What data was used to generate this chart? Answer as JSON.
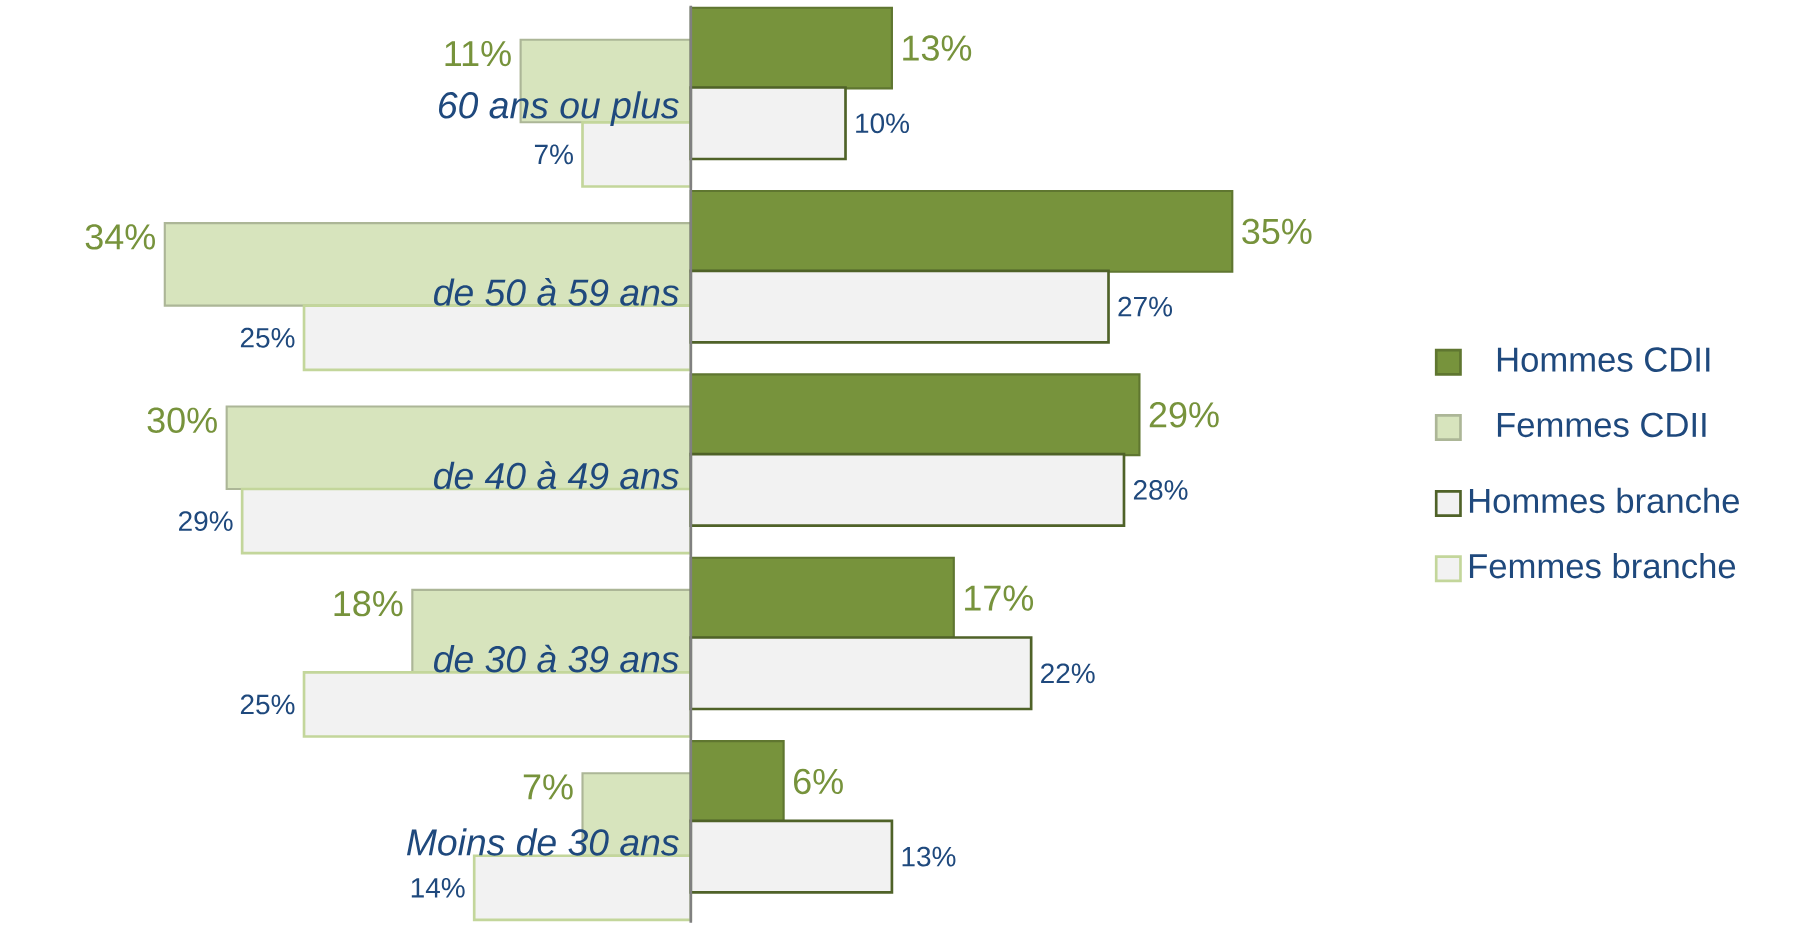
{
  "chart_data": [
    {
      "type": "bar",
      "orientation": "horizontal",
      "legend": "right",
      "categories": [
        "60 ans ou plus",
        "de 50 à 59 ans",
        "de 40 à 49 ans",
        "de 30 à 39 ans",
        "Moins de 30 ans"
      ],
      "series": [
        {
          "name": "Femmes CDII",
          "color": "#d7e4bd",
          "values": [
            11,
            34,
            30,
            18,
            7
          ],
          "value_labels": [
            "11%",
            "34%",
            "30%",
            "18%",
            "7%"
          ]
        },
        {
          "name": "Femmes branche",
          "color": "#c3d69b",
          "values": [
            7,
            25,
            29,
            25,
            14
          ],
          "value_labels": [
            "7%",
            "25%",
            "29%",
            "25%",
            "14%"
          ]
        }
      ]
    },
    {
      "type": "bar",
      "orientation": "horizontal",
      "categories": [
        null,
        null,
        null,
        null,
        null
      ],
      "series": [
        {
          "name": "Hommes CDII",
          "color": "#77933c",
          "values": [
            13,
            35,
            29,
            17,
            6
          ],
          "value_labels": [
            "13%",
            "35%",
            "29%",
            "17%",
            "6%"
          ]
        },
        {
          "name": "Hommes branche",
          "color": "#4f6228",
          "values": [
            10,
            27,
            28,
            22,
            13
          ],
          "value_labels": [
            "10%",
            "27%",
            "28%",
            "22%",
            "13%"
          ]
        }
      ],
      "legend": "right"
    }
  ]
}
